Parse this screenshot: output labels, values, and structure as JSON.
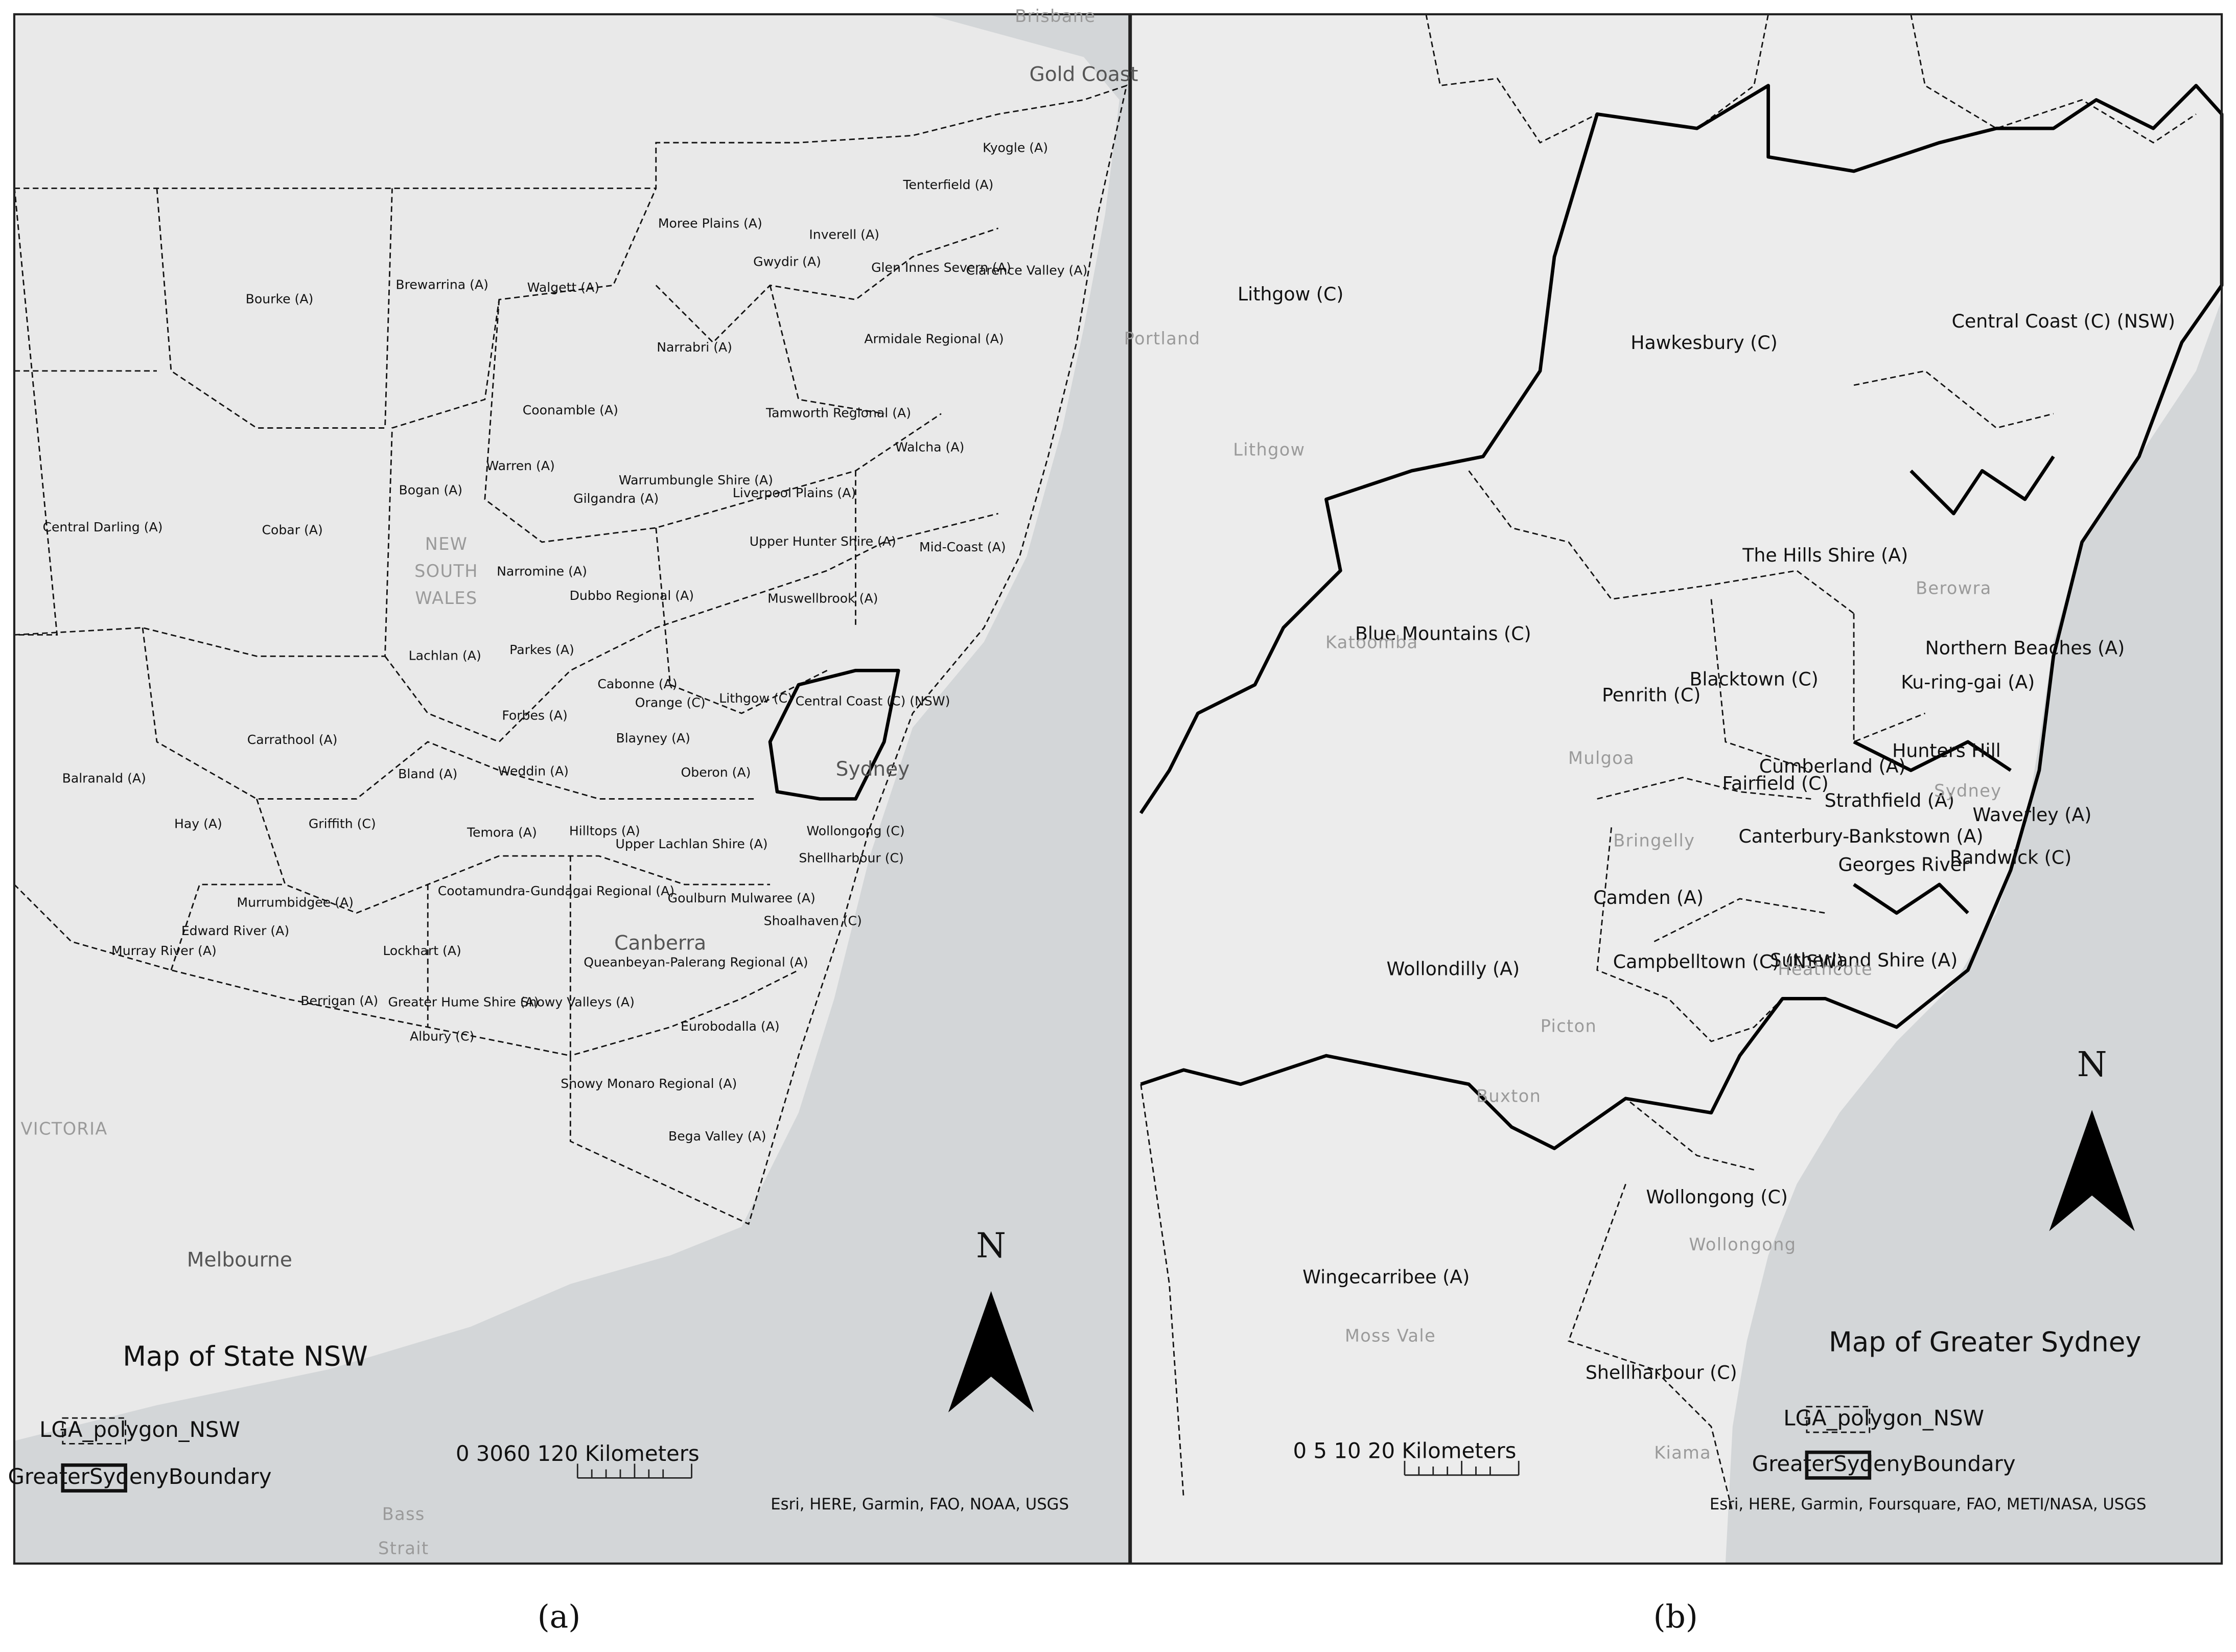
{
  "panels": [
    {
      "caption": "(a)",
      "map_title": "Map of State NSW",
      "north": "N",
      "legend": [
        "LGA_polygon_NSW",
        "GreaterSydenyBoundary"
      ],
      "scale": "0 3060   120 Kilometers",
      "attribution": "Esri, HERE, Garmin, FAO, NOAA, USGS",
      "places": [
        "Brisbane",
        "Gold Coast",
        "NEW",
        "SOUTH",
        "WALES",
        "Canberra",
        "Sydney",
        "Melbourne",
        "VICTORIA",
        "Bass",
        "Strait"
      ],
      "lga_labels": [
        "Bourke (A)",
        "Brewarrina (A)",
        "Walgett (A)",
        "Moree Plains (A)",
        "Inverell (A)",
        "Gwydir (A)",
        "Glen Innes Severn (A)",
        "Tenterfield (A)",
        "Kyogle (A)",
        "Clarence Valley (A)",
        "Narrabri (A)",
        "Armidale Regional (A)",
        "Coonamble (A)",
        "Bogan (A)",
        "Warren (A)",
        "Gilgandra (A)",
        "Warrumbungle Shire (A)",
        "Tamworth Regional (A)",
        "Walcha (A)",
        "Liverpool Plains (A)",
        "Central Darling (A)",
        "Cobar (A)",
        "Narromine (A)",
        "Dubbo Regional (A)",
        "Upper Hunter Shire (A)",
        "Mid-Coast (A)",
        "Lachlan (A)",
        "Parkes (A)",
        "Muswellbrook (A)",
        "Forbes (A)",
        "Cabonne (A)",
        "Orange (C)",
        "Lithgow (C)",
        "Central Coast (C) (NSW)",
        "Carrathool (A)",
        "Balranald (A)",
        "Bland (A)",
        "Weddin (A)",
        "Blayney (A)",
        "Oberon (A)",
        "Hay (A)",
        "Griffith (C)",
        "Temora (A)",
        "Hilltops (A)",
        "Upper Lachlan Shire (A)",
        "Wollongong (C)",
        "Shellharbour (C)",
        "Murrumbidgee (A)",
        "Cootamundra-Gundagai Regional (A)",
        "Goulburn Mulwaree (A)",
        "Shoalhaven (C)",
        "Edward River (A)",
        "Murray River (A)",
        "Lockhart (A)",
        "Queanbeyan-Palerang Regional (A)",
        "Greater Hume Shire (A)",
        "Berrigan (A)",
        "Albury (C)",
        "Snowy Valleys (A)",
        "Eurobodalla (A)",
        "Snowy Monaro Regional (A)",
        "Bega Valley (A)"
      ]
    },
    {
      "caption": "(b)",
      "map_title": "Map of Greater Sydney",
      "north": "N",
      "legend": [
        "LGA_polygon_NSW",
        "GreaterSydenyBoundary"
      ],
      "scale": "0   5   10      20 Kilometers",
      "attribution": "Esri, HERE, Garmin, Foursquare, FAO, METI/NASA, USGS",
      "places": [
        "Portland",
        "Lithgow",
        "Katoomba",
        "Berowra",
        "Mulgoa",
        "Bringelly",
        "Sydney",
        "Picton",
        "Heathcote",
        "Buxton",
        "Wollongong",
        "Moss Vale",
        "Kiama"
      ],
      "lga_labels": [
        "Lithgow (C)",
        "Hawkesbury (C)",
        "Central Coast (C) (NSW)",
        "Blue Mountains (C)",
        "The Hills Shire (A)",
        "Penrith (C)",
        "Blacktown (C)",
        "Northern Beaches (A)",
        "Ku-ring-gai (A)",
        "Cumberland (A)",
        "Hunters Hill",
        "Fairfield (C)",
        "Strathfield (A)",
        "Waverley (A)",
        "Canterbury-Bankstown (A)",
        "Georges River",
        "Randwick (C)",
        "Camden (A)",
        "Campbelltown (C) (NSW)",
        "Sutherland Shire (A)",
        "Wollondilly (A)",
        "Wollongong (C)",
        "Wingecarribee (A)",
        "Shellharbour (C)"
      ]
    }
  ]
}
